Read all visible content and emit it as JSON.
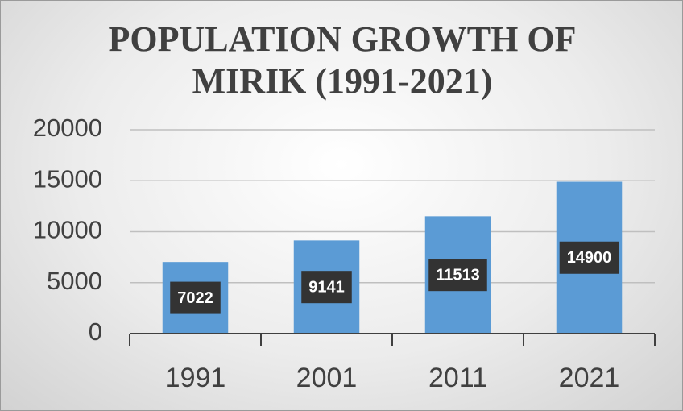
{
  "chart_data": {
    "type": "bar",
    "title": "POPULATION GROWTH OF MIRIK (1991-2021)",
    "categories": [
      "1991",
      "2001",
      "2011",
      "2021"
    ],
    "values": [
      7022,
      9141,
      11513,
      14900
    ],
    "color": "#5b9bd5",
    "ylim": [
      0,
      20000
    ],
    "yticks": [
      0,
      5000,
      10000,
      15000,
      20000
    ],
    "grid": true
  }
}
